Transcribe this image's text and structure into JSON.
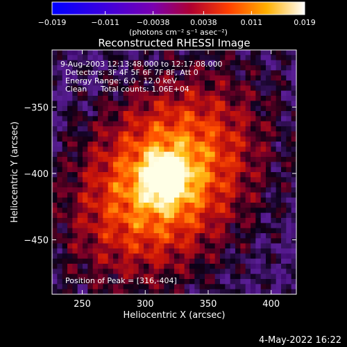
{
  "chart_data": {
    "type": "heatmap",
    "title": "Reconstructed RHESSI Image",
    "xlabel": "Heliocentric X (arcsec)",
    "ylabel": "Heliocentric Y (arcsec)",
    "xlim": [
      226,
      420
    ],
    "ylim": [
      -491,
      -307
    ],
    "xticks": [
      "250",
      "300",
      "350",
      "400"
    ],
    "yticks": [
      "-350",
      "-400",
      "-450"
    ],
    "colorbar": {
      "range": [
        -0.019,
        0.019
      ],
      "ticks": [
        "−0.019",
        "−0.011",
        "−0.0038",
        "0.0038",
        "0.011",
        "0.019"
      ],
      "unit_label": "(photons cm⁻² s⁻¹ asec⁻²)"
    },
    "annotations": {
      "time_range": "9-Aug-2003 12:13:48.000 to 12:17:08.000",
      "detectors": "Detectors: 3F 4F 5F 6F 7F 8F, Att 0",
      "energy_range": "Energy Range: 6.0 - 12.0 keV",
      "clean_label": "Clean",
      "total_counts": "Total counts: 1.06E+04",
      "peak_position": "Position of Peak = [316,-404]"
    },
    "peak": {
      "x": 316,
      "y": -404
    }
  },
  "footer": {
    "date": "4-May-2022 16:22"
  }
}
